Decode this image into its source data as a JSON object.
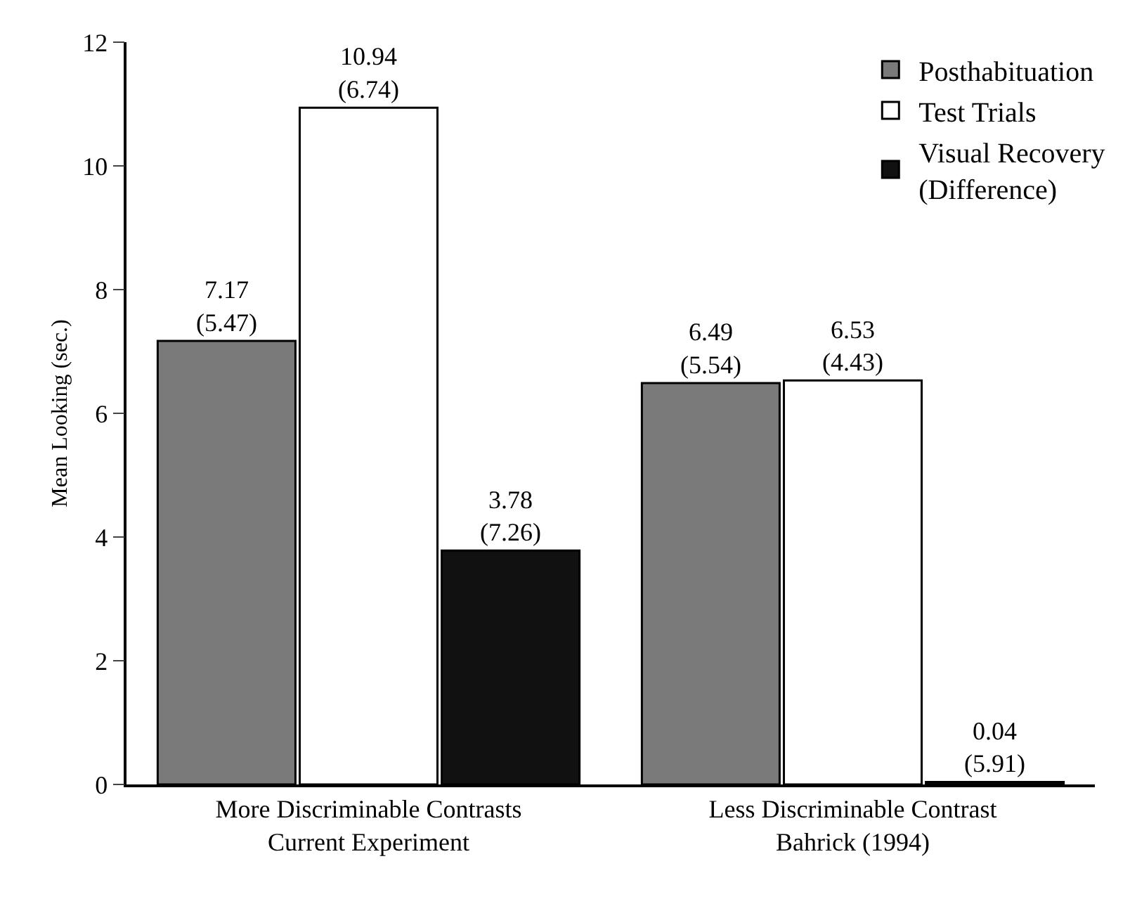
{
  "chart_data": {
    "type": "bar",
    "ylabel": "Mean Looking (sec.)",
    "categories": [
      "More Discriminable Contrasts\nCurrent Experiment",
      "Less Discriminable Contrast\nBahrick (1994)"
    ],
    "series": [
      {
        "name": "Posthabituation",
        "color": "#7a7a7a",
        "values": [
          7.17,
          6.49
        ],
        "value_labels": [
          "7.17\n(5.47)",
          "6.49\n(5.54)"
        ]
      },
      {
        "name": "Test Trials",
        "color": "#ffffff",
        "values": [
          10.94,
          6.53
        ],
        "value_labels": [
          "10.94\n(6.74)",
          "6.53\n(4.43)"
        ]
      },
      {
        "name": "Visual Recovery\n(Difference)",
        "color": "#111111",
        "values": [
          3.78,
          0.04
        ],
        "value_labels": [
          "3.78\n(7.26)",
          "0.04\n(5.91)"
        ]
      }
    ],
    "ylim": [
      0,
      12
    ],
    "yticks": [
      0,
      2,
      4,
      6,
      8,
      10,
      12
    ],
    "grid": false,
    "legend": "top right"
  }
}
